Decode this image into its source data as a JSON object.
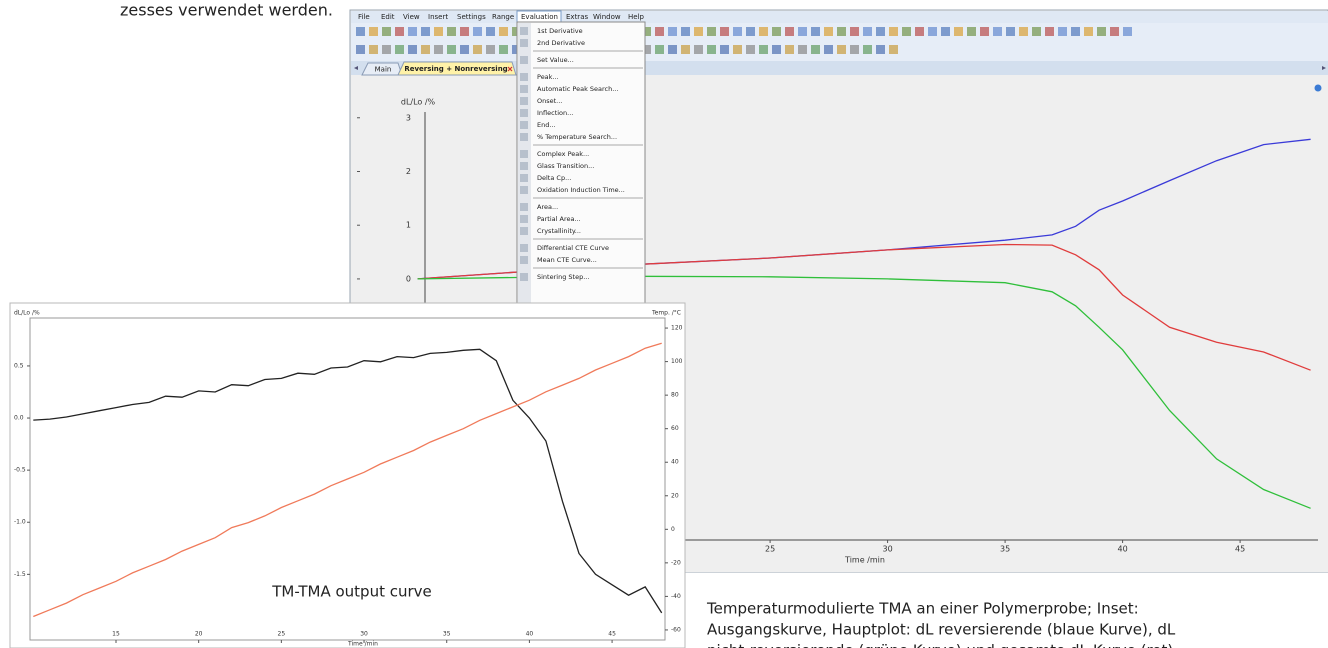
{
  "top_text": "zesses verwendet werden.",
  "window": {
    "menu": [
      "File",
      "Edit",
      "View",
      "Insert",
      "Settings",
      "Range",
      "Evaluation",
      "Extras",
      "Window",
      "Help"
    ],
    "evaluation_menu": [
      [
        "1st Derivative",
        "2nd Derivative"
      ],
      [
        "Set Value..."
      ],
      [
        "Peak...",
        "Automatic Peak Search...",
        "Onset...",
        "Inflection...",
        "End...",
        "% Temperature Search..."
      ],
      [
        "Complex Peak...",
        "Glass Transition...",
        "Delta Cp...",
        "Oxidation Induction Time..."
      ],
      [
        "Area...",
        "Partial Area...",
        "Crystallinity..."
      ],
      [
        "Differential CTE Curve",
        "Mean CTE Curve..."
      ],
      [
        "Sintering Step..."
      ]
    ],
    "tabs": [
      "Main",
      "Reversing + Nonreversing"
    ]
  },
  "main_plot": {
    "type": "line",
    "y_label": "dL/Lo /%",
    "x_label": "Time /min",
    "xlim": [
      7.55,
      48.4
    ],
    "ylim": [
      -4.86,
      3.61
    ],
    "xticks": [
      25,
      30,
      35,
      40,
      45
    ],
    "yticks": [
      0,
      1,
      2,
      3
    ],
    "x": [
      10,
      18,
      25,
      30,
      35,
      37,
      38,
      39,
      40,
      42,
      44,
      46,
      48
    ],
    "series": [
      {
        "color": "#3a3ad8",
        "values": [
          0,
          0.24,
          0.39,
          0.54,
          0.72,
          0.82,
          0.98,
          1.28,
          1.45,
          1.83,
          2.2,
          2.5,
          2.6
        ]
      },
      {
        "color": "#e03c3c",
        "values": [
          0,
          0.24,
          0.39,
          0.54,
          0.64,
          0.63,
          0.45,
          0.17,
          -0.3,
          -0.9,
          -1.18,
          -1.36,
          -1.7
        ]
      },
      {
        "color": "#2fbf3a",
        "values": [
          0,
          0.05,
          0.04,
          0,
          -0.07,
          -0.24,
          -0.5,
          -0.9,
          -1.32,
          -2.45,
          -3.35,
          -3.92,
          -4.27
        ]
      }
    ]
  },
  "inset_plot": {
    "type": "line",
    "y_label": "dL/Lo /%",
    "y2_label": "Temp. /°C",
    "x_label": "Time /min",
    "annotation": "TM-TMA output curve",
    "xlim": [
      9.8,
      48.2
    ],
    "ylim": [
      -2.13,
      0.96
    ],
    "y2lim": [
      -66,
      126
    ],
    "xticks": [
      15,
      20,
      25,
      30,
      35,
      40,
      45
    ],
    "yticks": [
      0.5,
      {
        "value": 0,
        "label": "0.0"
      },
      -0.5,
      {
        "value": -1,
        "label": "-1.0"
      },
      -1.5
    ],
    "y2ticks": [
      120,
      100,
      80,
      60,
      40,
      20,
      0,
      -20,
      -40,
      -60
    ],
    "x": [
      10,
      11,
      12,
      13,
      14,
      15,
      16,
      17,
      18,
      19,
      20,
      21,
      22,
      23,
      24,
      25,
      26,
      27,
      28,
      29,
      30,
      31,
      32,
      33,
      34,
      35,
      36,
      37,
      38,
      39,
      40,
      41,
      42,
      43,
      44,
      45,
      46,
      47,
      48
    ],
    "series": [
      {
        "color": "#222222",
        "values": [
          -0.02,
          -0.01,
          0.01,
          0.04,
          0.07,
          0.1,
          0.13,
          0.15,
          0.21,
          0.2,
          0.26,
          0.25,
          0.32,
          0.31,
          0.37,
          0.38,
          0.43,
          0.42,
          0.48,
          0.49,
          0.55,
          0.54,
          0.59,
          0.58,
          0.62,
          0.63,
          0.65,
          0.66,
          0.55,
          0.17,
          0,
          -0.22,
          -0.8,
          -1.3,
          -1.5,
          -1.6,
          -1.7,
          -1.62,
          -1.87
        ]
      },
      {
        "color": "#f07a5a",
        "axis": "y2",
        "values": [
          -52,
          -48,
          -44,
          -39,
          -35,
          -31,
          -26,
          -22,
          -18,
          -13,
          -9,
          -5,
          1,
          4,
          8,
          13,
          17,
          21,
          26,
          30,
          34,
          39,
          43,
          47,
          52,
          56,
          60,
          65,
          69,
          73,
          77,
          82,
          86,
          90,
          95,
          99,
          103,
          108,
          111
        ]
      }
    ]
  },
  "caption": [
    "Temperaturmodulierte TMA an einer Polymerprobe; Inset:",
    "Ausgangskurve, Hauptplot: dL reversierende (blaue Kurve), dL",
    "nicht-reversierende (grüne Kurve) und gesamte dL-Kurve (rot)."
  ]
}
